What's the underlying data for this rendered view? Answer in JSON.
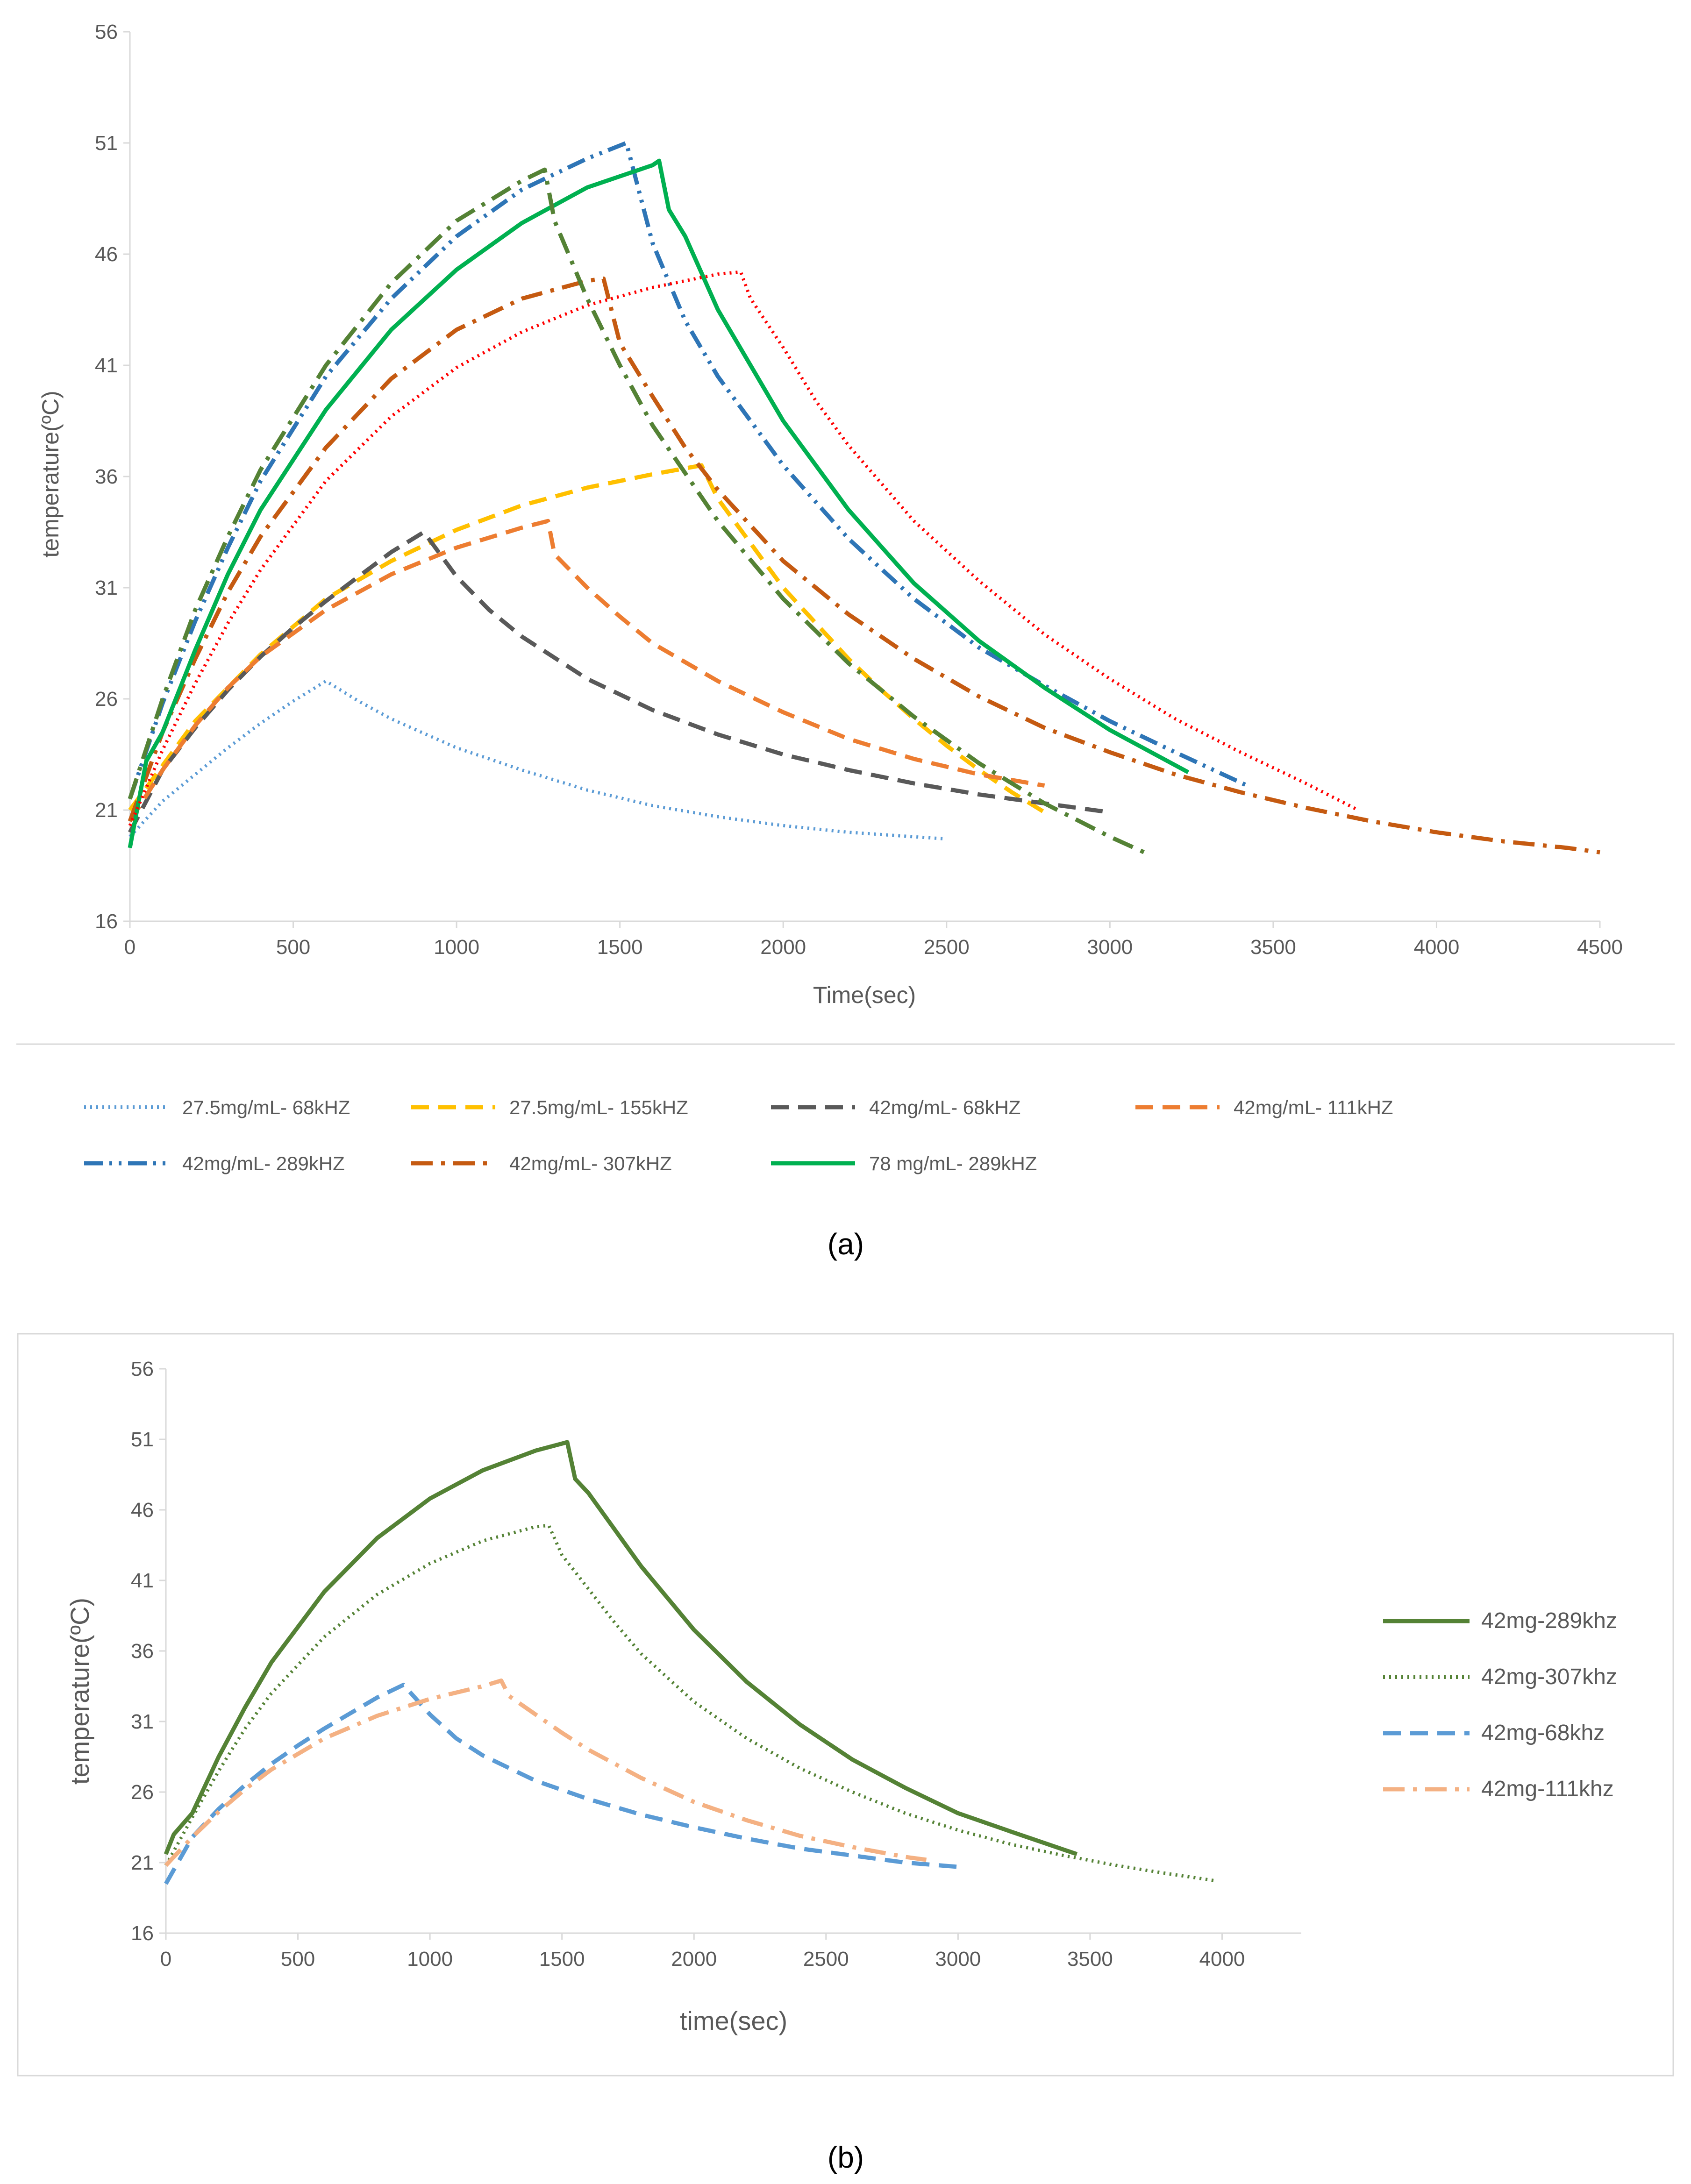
{
  "chart_data": [
    {
      "type": "line",
      "panel": "a",
      "caption": "(a)",
      "xlabel": "Time(sec)",
      "ylabel": "temperature(ºC)",
      "xlim": [
        0,
        4500
      ],
      "ylim": [
        16,
        56
      ],
      "xticks": [
        0,
        500,
        1000,
        1500,
        2000,
        2500,
        3000,
        3500,
        4000,
        4500
      ],
      "yticks": [
        16,
        21,
        26,
        31,
        36,
        41,
        46,
        51,
        56
      ],
      "legend_position": "bottom",
      "series": [
        {
          "name": "27.5mg/mL- 68kHZ",
          "color": "#5b9bd5",
          "style": "dotted",
          "x": [
            0,
            100,
            200,
            300,
            400,
            500,
            600,
            700,
            800,
            1000,
            1200,
            1400,
            1600,
            1800,
            2000,
            2200,
            2400,
            2500
          ],
          "y": [
            19.8,
            21.4,
            22.6,
            23.8,
            24.9,
            25.9,
            26.8,
            25.9,
            25.1,
            23.8,
            22.8,
            21.9,
            21.2,
            20.7,
            20.3,
            20.0,
            19.8,
            19.7
          ]
        },
        {
          "name": "27.5mg/mL- 155kHZ",
          "color": "#ffc000",
          "style": "dashed",
          "x": [
            0,
            100,
            200,
            400,
            600,
            800,
            1000,
            1200,
            1400,
            1600,
            1750,
            1800,
            1900,
            2000,
            2100,
            2200,
            2300,
            2400,
            2500,
            2600,
            2700,
            2800
          ],
          "y": [
            21.0,
            23.0,
            25.0,
            28.0,
            30.5,
            32.2,
            33.6,
            34.7,
            35.5,
            36.1,
            36.5,
            35.0,
            33.0,
            31.0,
            29.4,
            27.8,
            26.4,
            25.1,
            23.9,
            22.8,
            21.8,
            20.9
          ]
        },
        {
          "name": "42mg/mL- 68kHZ",
          "color": "#595959",
          "style": "dashed",
          "x": [
            0,
            100,
            200,
            300,
            400,
            500,
            600,
            700,
            800,
            900,
            1000,
            1100,
            1200,
            1400,
            1600,
            1800,
            2000,
            2200,
            2400,
            2600,
            2800,
            3000
          ],
          "y": [
            20.0,
            22.8,
            24.7,
            26.4,
            27.9,
            29.2,
            30.4,
            31.5,
            32.6,
            33.5,
            31.5,
            30.0,
            28.8,
            26.9,
            25.5,
            24.4,
            23.5,
            22.8,
            22.2,
            21.7,
            21.3,
            20.9
          ]
        },
        {
          "name": "42mg/mL- 111kHZ",
          "color": "#ed7d31",
          "style": "dashed",
          "x": [
            0,
            100,
            200,
            300,
            400,
            600,
            800,
            1000,
            1200,
            1280,
            1300,
            1400,
            1500,
            1600,
            1800,
            2000,
            2200,
            2400,
            2600,
            2800
          ],
          "y": [
            20.5,
            22.8,
            24.8,
            26.5,
            27.9,
            30.0,
            31.6,
            32.8,
            33.7,
            34.0,
            32.5,
            31.0,
            29.7,
            28.5,
            26.8,
            25.4,
            24.2,
            23.3,
            22.6,
            22.1
          ]
        },
        {
          "name": "42mg/mL- 289kHZ",
          "color": "#2e75b6",
          "style": "dashdotdot",
          "x": [
            0,
            100,
            200,
            300,
            400,
            600,
            800,
            1000,
            1200,
            1400,
            1520,
            1600,
            1700,
            1800,
            2000,
            2200,
            2400,
            2600,
            2800,
            3000,
            3200,
            3420
          ],
          "y": [
            21.5,
            25.8,
            29.5,
            32.8,
            35.8,
            40.5,
            44.0,
            46.8,
            48.9,
            50.3,
            51.0,
            46.5,
            43.0,
            40.5,
            36.5,
            33.2,
            30.5,
            28.3,
            26.6,
            25.0,
            23.6,
            22.1
          ]
        },
        {
          "name": "42mg/mL- 307kHZ",
          "color": "#c55a11",
          "style": "dashdot",
          "x": [
            0,
            100,
            200,
            300,
            400,
            600,
            800,
            1000,
            1200,
            1400,
            1450,
            1500,
            1600,
            1700,
            1800,
            2000,
            2200,
            2400,
            2600,
            2800,
            3000,
            3200,
            3400,
            3600,
            3800,
            4000,
            4200,
            4400,
            4500
          ],
          "y": [
            20.5,
            24.5,
            27.8,
            30.8,
            33.3,
            37.3,
            40.4,
            42.6,
            44.0,
            44.8,
            44.9,
            42.0,
            39.6,
            37.3,
            35.4,
            32.2,
            29.8,
            27.8,
            26.1,
            24.7,
            23.6,
            22.6,
            21.8,
            21.1,
            20.5,
            20.0,
            19.6,
            19.3,
            19.1
          ]
        },
        {
          "name": "78 mg/mL- 289kHZ",
          "color": "#00b050",
          "style": "solid",
          "x": [
            0,
            50,
            100,
            200,
            300,
            400,
            600,
            800,
            1000,
            1200,
            1400,
            1600,
            1620,
            1650,
            1700,
            1800,
            2000,
            2200,
            2400,
            2600,
            2800,
            3000,
            3240
          ],
          "y": [
            19.3,
            23.2,
            24.5,
            28.2,
            31.6,
            34.5,
            39.0,
            42.6,
            45.3,
            47.4,
            49.0,
            50.0,
            50.2,
            48.0,
            46.8,
            43.5,
            38.5,
            34.5,
            31.2,
            28.6,
            26.5,
            24.6,
            22.7
          ]
        },
        {
          "name": "",
          "color": "#ff0000",
          "style": "dotted",
          "x": [
            0,
            100,
            200,
            300,
            400,
            600,
            800,
            1000,
            1200,
            1400,
            1600,
            1800,
            1870,
            1900,
            2000,
            2100,
            2200,
            2400,
            2600,
            2800,
            3000,
            3200,
            3400,
            3600,
            3760
          ],
          "y": [
            20.3,
            23.7,
            26.7,
            29.4,
            31.8,
            35.8,
            38.7,
            40.9,
            42.5,
            43.7,
            44.5,
            45.1,
            45.2,
            44.0,
            41.8,
            39.4,
            37.4,
            34.0,
            31.3,
            28.9,
            26.9,
            25.1,
            23.6,
            22.2,
            21.0
          ]
        },
        {
          "name": "",
          "color": "#548235",
          "style": "dashdot",
          "x": [
            0,
            100,
            200,
            300,
            400,
            600,
            800,
            1000,
            1200,
            1270,
            1300,
            1400,
            1500,
            1600,
            1800,
            2000,
            2200,
            2400,
            2600,
            2800,
            3000,
            3120
          ],
          "y": [
            21.5,
            26.0,
            30.0,
            33.3,
            36.3,
            41.0,
            44.7,
            47.5,
            49.3,
            49.8,
            47.5,
            44.0,
            41.0,
            38.3,
            34.0,
            30.5,
            27.6,
            25.2,
            23.1,
            21.3,
            19.8,
            19.0
          ]
        }
      ]
    },
    {
      "type": "line",
      "panel": "b",
      "caption": "(b)",
      "xlabel": "time(sec)",
      "ylabel": "temperature(ºC)",
      "xlim": [
        0,
        4300
      ],
      "ylim": [
        16,
        56
      ],
      "xticks": [
        0,
        500,
        1000,
        1500,
        2000,
        2500,
        3000,
        3500,
        4000
      ],
      "yticks": [
        16,
        21,
        26,
        31,
        36,
        41,
        46,
        51,
        56
      ],
      "legend_position": "right",
      "series": [
        {
          "name": "42mg-289khz",
          "color": "#548235",
          "style": "solid",
          "x": [
            0,
            30,
            100,
            200,
            300,
            400,
            600,
            800,
            1000,
            1200,
            1400,
            1500,
            1520,
            1550,
            1600,
            1700,
            1800,
            2000,
            2200,
            2400,
            2600,
            2800,
            3000,
            3200,
            3450
          ],
          "y": [
            21.6,
            23.0,
            24.5,
            28.5,
            32.0,
            35.2,
            40.2,
            44.0,
            46.8,
            48.8,
            50.2,
            50.7,
            50.8,
            48.2,
            47.2,
            44.6,
            42.0,
            37.5,
            33.8,
            30.8,
            28.3,
            26.3,
            24.5,
            23.2,
            21.6
          ]
        },
        {
          "name": "42mg-307khz",
          "color": "#548235",
          "style": "dotted",
          "x": [
            0,
            100,
            200,
            300,
            400,
            600,
            800,
            1000,
            1200,
            1400,
            1450,
            1500,
            1600,
            1700,
            1800,
            2000,
            2200,
            2400,
            2600,
            2800,
            3000,
            3200,
            3400,
            3600,
            3800,
            3980
          ],
          "y": [
            20.8,
            24.2,
            27.5,
            30.5,
            33.0,
            37.0,
            40.0,
            42.2,
            43.8,
            44.8,
            44.9,
            42.8,
            40.4,
            38.0,
            35.8,
            32.4,
            29.8,
            27.7,
            26.0,
            24.5,
            23.3,
            22.3,
            21.5,
            20.8,
            20.2,
            19.7
          ]
        },
        {
          "name": "42mg-68khz",
          "color": "#5b9bd5",
          "style": "dashed",
          "x": [
            0,
            100,
            200,
            300,
            400,
            500,
            600,
            700,
            800,
            900,
            1000,
            1100,
            1200,
            1400,
            1600,
            1800,
            2000,
            2200,
            2400,
            2600,
            2800,
            3000
          ],
          "y": [
            19.5,
            22.8,
            24.8,
            26.5,
            28.0,
            29.3,
            30.5,
            31.6,
            32.7,
            33.6,
            31.5,
            29.8,
            28.6,
            26.8,
            25.5,
            24.4,
            23.5,
            22.7,
            22.0,
            21.5,
            21.0,
            20.7
          ]
        },
        {
          "name": "42mg-111khz",
          "color": "#f4b183",
          "style": "dashdot",
          "x": [
            0,
            100,
            200,
            300,
            400,
            600,
            800,
            1000,
            1200,
            1270,
            1300,
            1400,
            1500,
            1600,
            1800,
            2000,
            2200,
            2400,
            2600,
            2800,
            2880
          ],
          "y": [
            20.8,
            22.8,
            24.6,
            26.2,
            27.6,
            29.8,
            31.4,
            32.6,
            33.5,
            33.9,
            32.8,
            31.5,
            30.2,
            29.0,
            27.0,
            25.3,
            24.0,
            22.9,
            22.1,
            21.4,
            21.2
          ]
        }
      ]
    }
  ]
}
